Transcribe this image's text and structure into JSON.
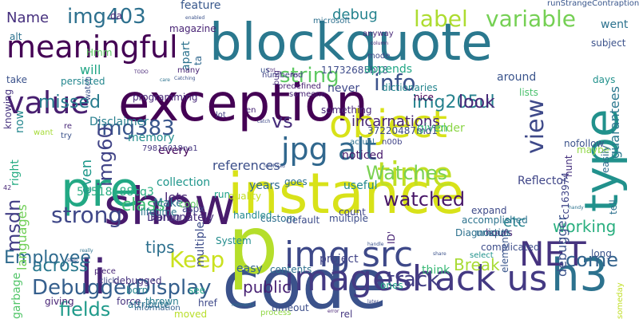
{
  "words": [
    {
      "text": "code",
      "color": "#3b528b"
    },
    {
      "text": "instance",
      "color": "#d8e219"
    },
    {
      "text": "exception",
      "color": "#440154"
    },
    {
      "text": "blockquote",
      "color": "#2a788e"
    },
    {
      "text": "show",
      "color": "#481a6c"
    },
    {
      "text": "type",
      "color": "#21918c"
    },
    {
      "text": "pre",
      "color": "#22a884"
    },
    {
      "text": "p",
      "color": "#b5de2b"
    },
    {
      "text": "li",
      "color": "#482475"
    },
    {
      "text": "h3",
      "color": "#2c728e"
    },
    {
      "text": "img src",
      "color": "#3e4989"
    },
    {
      "text": "imageshack us",
      "color": "#443a83"
    },
    {
      "text": "object",
      "color": "#d8e219"
    },
    {
      "text": "jpg alt",
      "color": "#31688e"
    },
    {
      "text": "meaningful",
      "color": "#440154"
    },
    {
      "text": "value",
      "color": "#481f70"
    },
    {
      "text": "time",
      "color": "#c0df25"
    },
    {
      "text": "img403",
      "color": "#2d708e"
    },
    {
      "text": "label",
      "color": "#addc30"
    },
    {
      "text": "variable",
      "color": "#75d054"
    },
    {
      "text": "string",
      "color": "#5ec962"
    },
    {
      "text": "info",
      "color": "#3b528b"
    },
    {
      "text": "view",
      "color": "#3e4989"
    },
    {
      "text": "img205ul",
      "color": "#26828e"
    },
    {
      "text": "look",
      "color": "#482878"
    },
    {
      "text": "NET",
      "color": "#46337f"
    },
    {
      "text": "vs",
      "color": "#472d7b"
    },
    {
      "text": "img383",
      "color": "#39568c"
    },
    {
      "text": "strong",
      "color": "#3f4788"
    },
    {
      "text": "watched",
      "color": "#481668"
    },
    {
      "text": "Watches",
      "color": "#7ad151"
    },
    {
      "text": "come",
      "color": "#33638d"
    },
    {
      "text": "Keep",
      "color": "#cae11f"
    },
    {
      "text": "track",
      "color": "#433e85"
    },
    {
      "text": "DebuggerDisplay",
      "color": "#355f8d"
    },
    {
      "text": "fields",
      "color": "#1f9a8a"
    },
    {
      "text": "across",
      "color": "#29798e"
    },
    {
      "text": "class",
      "color": "#3dbc74"
    },
    {
      "text": "img60",
      "color": "#414487"
    },
    {
      "text": "Employee",
      "color": "#2f6b8e"
    },
    {
      "text": "msdn",
      "color": "#423f85"
    },
    {
      "text": "even",
      "color": "#1f988b"
    },
    {
      "text": "working",
      "color": "#29af7f"
    },
    {
      "text": "Break",
      "color": "#a8db34"
    },
    {
      "text": "etc",
      "color": "#25848e"
    },
    {
      "text": "tips",
      "color": "#2d708e"
    },
    {
      "text": "public",
      "color": "#482173"
    },
    {
      "text": "Name",
      "color": "#46307e"
    },
    {
      "text": "debug",
      "color": "#25838e"
    },
    {
      "text": "missed",
      "color": "#287c8e"
    },
    {
      "text": "will",
      "color": "#21a685"
    },
    {
      "text": "feature",
      "color": "#38588c"
    },
    {
      "text": "incarnations",
      "color": "#482576"
    },
    {
      "text": "memory",
      "color": "#228d8d"
    },
    {
      "text": "programming",
      "color": "#482979"
    },
    {
      "text": "Disclaimer",
      "color": "#277f8e"
    },
    {
      "text": "guarantees",
      "color": "#2a788e"
    },
    {
      "text": "debugger",
      "color": "#3b528b"
    },
    {
      "text": "years",
      "color": "#2f6c8e"
    },
    {
      "text": "useful",
      "color": "#23888e"
    },
    {
      "text": "noticed",
      "color": "#481b6d"
    },
    {
      "text": "references",
      "color": "#3c4f8a"
    },
    {
      "text": "given",
      "color": "#31b57b"
    },
    {
      "text": "older",
      "color": "#8bd646"
    },
    {
      "text": "think",
      "color": "#3aba76"
    },
    {
      "text": "project",
      "color": "#414487"
    },
    {
      "text": "collection",
      "color": "#1f968b"
    },
    {
      "text": "every",
      "color": "#450559"
    },
    {
      "text": "lets",
      "color": "#482475"
    },
    {
      "text": "easy",
      "color": "#34618d"
    },
    {
      "text": "multiple",
      "color": "#3d4d8a"
    },
    {
      "text": "languages",
      "color": "#70cf57"
    },
    {
      "text": "now",
      "color": "#24878e"
    },
    {
      "text": "apart",
      "color": "#2c738e"
    },
    {
      "text": "never",
      "color": "#3f4889"
    },
    {
      "text": "around",
      "color": "#3a548c"
    },
    {
      "text": "Fortunately",
      "color": "#472e7c"
    },
    {
      "text": "Damn",
      "color": "#46337f"
    },
    {
      "text": "Make",
      "color": "#2c728e"
    },
    {
      "text": "garbage",
      "color": "#52c569"
    },
    {
      "text": "right",
      "color": "#25ab82"
    },
    {
      "text": "Reflector",
      "color": "#404688"
    },
    {
      "text": "42",
      "color": "#482677"
    },
    {
      "text": "52518188cq3",
      "color": "#27ad81"
    },
    {
      "text": "11732685b18",
      "color": "#3e4c8a"
    },
    {
      "text": "37220487md1",
      "color": "#3e4a89"
    },
    {
      "text": "cc163974",
      "color": "#404588"
    },
    {
      "text": "79816018na1",
      "color": "#453781"
    },
    {
      "text": "moved",
      "color": "#b8de29"
    },
    {
      "text": "appends",
      "color": "#21a685"
    },
    {
      "text": "dictionaries",
      "color": "#25858e"
    },
    {
      "text": "accomplished",
      "color": "#2c738e"
    },
    {
      "text": "nice",
      "color": "#440154"
    },
    {
      "text": "something",
      "color": "#482878"
    },
    {
      "text": "numbered",
      "color": "#414487"
    },
    {
      "text": "predefined",
      "color": "#482071"
    },
    {
      "text": "unique",
      "color": "#30698e"
    },
    {
      "text": "expand",
      "color": "#3e4a89"
    },
    {
      "text": "elements",
      "color": "#39568c"
    },
    {
      "text": "hours",
      "color": "#482374"
    },
    {
      "text": "Diagnostics",
      "color": "#2c718e"
    },
    {
      "text": "select",
      "color": "#20928c"
    },
    {
      "text": "multiple",
      "color": "#3d4d8a"
    },
    {
      "text": "default",
      "color": "#3d4d8a"
    },
    {
      "text": "custom",
      "color": "#2e6f8e"
    },
    {
      "text": "contents",
      "color": "#2d708e"
    },
    {
      "text": "timeout",
      "color": "#3d4e8a"
    },
    {
      "text": "rel",
      "color": "#453781"
    },
    {
      "text": "handled",
      "color": "#23898e"
    },
    {
      "text": "ones",
      "color": "#20a386"
    },
    {
      "text": "complicated",
      "color": "#3d4d8a"
    },
    {
      "text": "ID'",
      "color": "#482475"
    },
    {
      "text": "run",
      "color": "#1fa088"
    },
    {
      "text": "count",
      "color": "#404688"
    },
    {
      "text": "System",
      "color": "#228c8d"
    },
    {
      "text": "lifetime",
      "color": "#2a768e"
    },
    {
      "text": "debugged",
      "color": "#46327e"
    },
    {
      "text": "piece",
      "color": "#482677"
    },
    {
      "text": "click",
      "color": "#3f4889"
    },
    {
      "text": "see",
      "color": "#20a386"
    },
    {
      "text": "born",
      "color": "#25838e"
    },
    {
      "text": "giving",
      "color": "#482475"
    },
    {
      "text": "force",
      "color": "#46337f"
    },
    {
      "text": "thrown",
      "color": "#287c8e"
    },
    {
      "text": "href",
      "color": "#3e4989"
    },
    {
      "text": "information",
      "color": "#355f8d"
    },
    {
      "text": "attribute",
      "color": "#2c728e"
    },
    {
      "text": "want",
      "color": "#a5db36"
    },
    {
      "text": "knowing",
      "color": "#46337f"
    },
    {
      "text": "take",
      "color": "#3b528b"
    },
    {
      "text": "persisted",
      "color": "#24878e"
    },
    {
      "text": "da",
      "color": "#482475"
    },
    {
      "text": "alt",
      "color": "#2c728e"
    },
    {
      "text": "Hmm",
      "color": "#5ec962"
    },
    {
      "text": "ta",
      "color": "#31688e"
    },
    {
      "text": "magazine",
      "color": "#482475"
    },
    {
      "text": "quality",
      "color": "#c2df23"
    },
    {
      "text": "aspx",
      "color": "#414487"
    },
    {
      "text": "watch",
      "color": "#3b528b"
    },
    {
      "text": "lists",
      "color": "#4ac16d"
    },
    {
      "text": "maybe",
      "color": "#8fd744"
    },
    {
      "text": "easily",
      "color": "#2e6e8e"
    },
    {
      "text": "days",
      "color": "#21918c"
    },
    {
      "text": "tell",
      "color": "#2d718e"
    },
    {
      "text": "long",
      "color": "#3b528b"
    },
    {
      "text": "nofollow",
      "color": "#3b528b"
    },
    {
      "text": "hunt",
      "color": "#46317e"
    },
    {
      "text": "went",
      "color": "#2c728e"
    },
    {
      "text": "subject",
      "color": "#3b528b"
    },
    {
      "text": "runStrangeContraption",
      "color": "#39568c"
    },
    {
      "text": "anyway",
      "color": "#482878"
    },
    {
      "text": "mode",
      "color": "#3e4989"
    },
    {
      "text": "bug",
      "color": "#472c7a"
    },
    {
      "text": "microsoft",
      "color": "#2d708e"
    },
    {
      "text": "many",
      "color": "#482475"
    },
    {
      "text": "us",
      "color": "#3b528b"
    },
    {
      "text": "en",
      "color": "#482475"
    },
    {
      "text": "lot",
      "color": "#433e85"
    },
    {
      "text": "goes",
      "color": "#2d708e"
    },
    {
      "text": "try",
      "color": "#3b528b"
    },
    {
      "text": "re",
      "color": "#482878"
    },
    {
      "text": "n00b",
      "color": "#414487"
    },
    {
      "text": "actual",
      "color": "#2d708e"
    },
    {
      "text": "someone",
      "color": "#482475"
    },
    {
      "text": "someday",
      "color": "#c0df25"
    },
    {
      "text": "process",
      "color": "#8fd744"
    },
    {
      "text": "cool",
      "color": "#5ec962"
    }
  ],
  "tiny": [
    {
      "text": "enabled",
      "color": "#3b528b"
    },
    {
      "text": "Ctrl",
      "color": "#482475"
    },
    {
      "text": "Catching",
      "color": "#3b528b"
    },
    {
      "text": "care",
      "color": "#2c728e"
    },
    {
      "text": "TODO",
      "color": "#482878"
    },
    {
      "text": "catch",
      "color": "#3e4989"
    },
    {
      "text": "forehead",
      "color": "#3b528b"
    },
    {
      "text": "handy",
      "color": "#2c728e"
    },
    {
      "text": "share",
      "color": "#3b528b"
    },
    {
      "text": "error",
      "color": "#482475"
    },
    {
      "text": "later",
      "color": "#3e4989"
    },
    {
      "text": "moments",
      "color": "#2c728e"
    },
    {
      "text": "handle",
      "color": "#3b528b"
    },
    {
      "text": "column",
      "color": "#482475"
    },
    {
      "text": "really",
      "color": "#2c728e"
    },
    {
      "text": "step",
      "color": "#3b528b"
    },
    {
      "text": "first",
      "color": "#482878"
    }
  ]
}
